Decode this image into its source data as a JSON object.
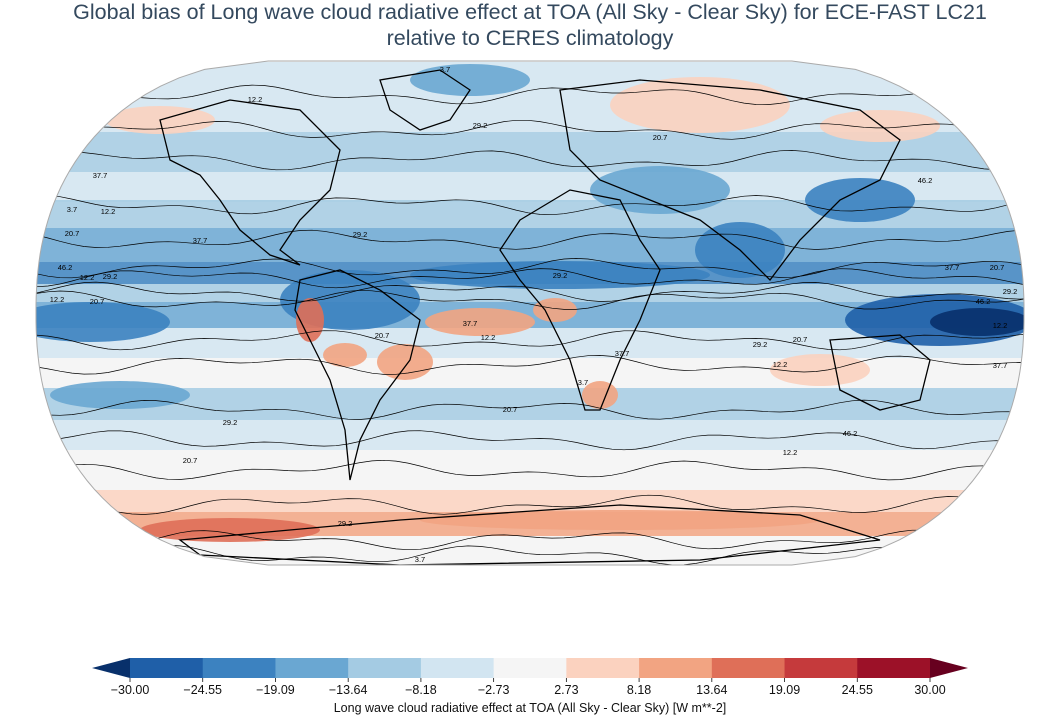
{
  "figure": {
    "title_line1": "Global bias of Long wave cloud radiative effect at TOA (All Sky - Clear Sky) for ECE-FAST LC21",
    "title_line2": "relative to CERES climatology",
    "projection": "Robinson (global)"
  },
  "colorbar": {
    "label": "Long wave cloud radiative effect at TOA (All Sky - Clear Sky) [W m**-2]",
    "ticks": [
      "−30.00",
      "−24.55",
      "−19.09",
      "−13.64",
      "−8.18",
      "−2.73",
      "2.73",
      "8.18",
      "13.64",
      "19.09",
      "24.55",
      "30.00"
    ],
    "colors": [
      "#1f5fa8",
      "#3c82c0",
      "#6aa7d2",
      "#a4cbe3",
      "#d2e5f1",
      "#f5f5f5",
      "#fbd2bf",
      "#f2a482",
      "#df6f58",
      "#c53a3c",
      "#9c1128"
    ],
    "extend_low": "#08306b",
    "extend_high": "#67001f"
  },
  "contour_labels": [
    "3.7",
    "12.2",
    "20.7",
    "29.2",
    "37.7",
    "46.2",
    "3.7",
    "12.2",
    "20.7",
    "29.2",
    "37.7",
    "46.2",
    "12.2",
    "29.2",
    "37.7",
    "20.7",
    "12.2",
    "20.7",
    "29.2",
    "37.7",
    "12.2",
    "20.7",
    "29.2",
    "46.2",
    "12.2",
    "29.2",
    "20.7",
    "3.7",
    "37.7",
    "12.2",
    "29.2",
    "20.7",
    "46.2",
    "37.7",
    "12.2",
    "20.7",
    "29.2",
    "3.7"
  ]
}
